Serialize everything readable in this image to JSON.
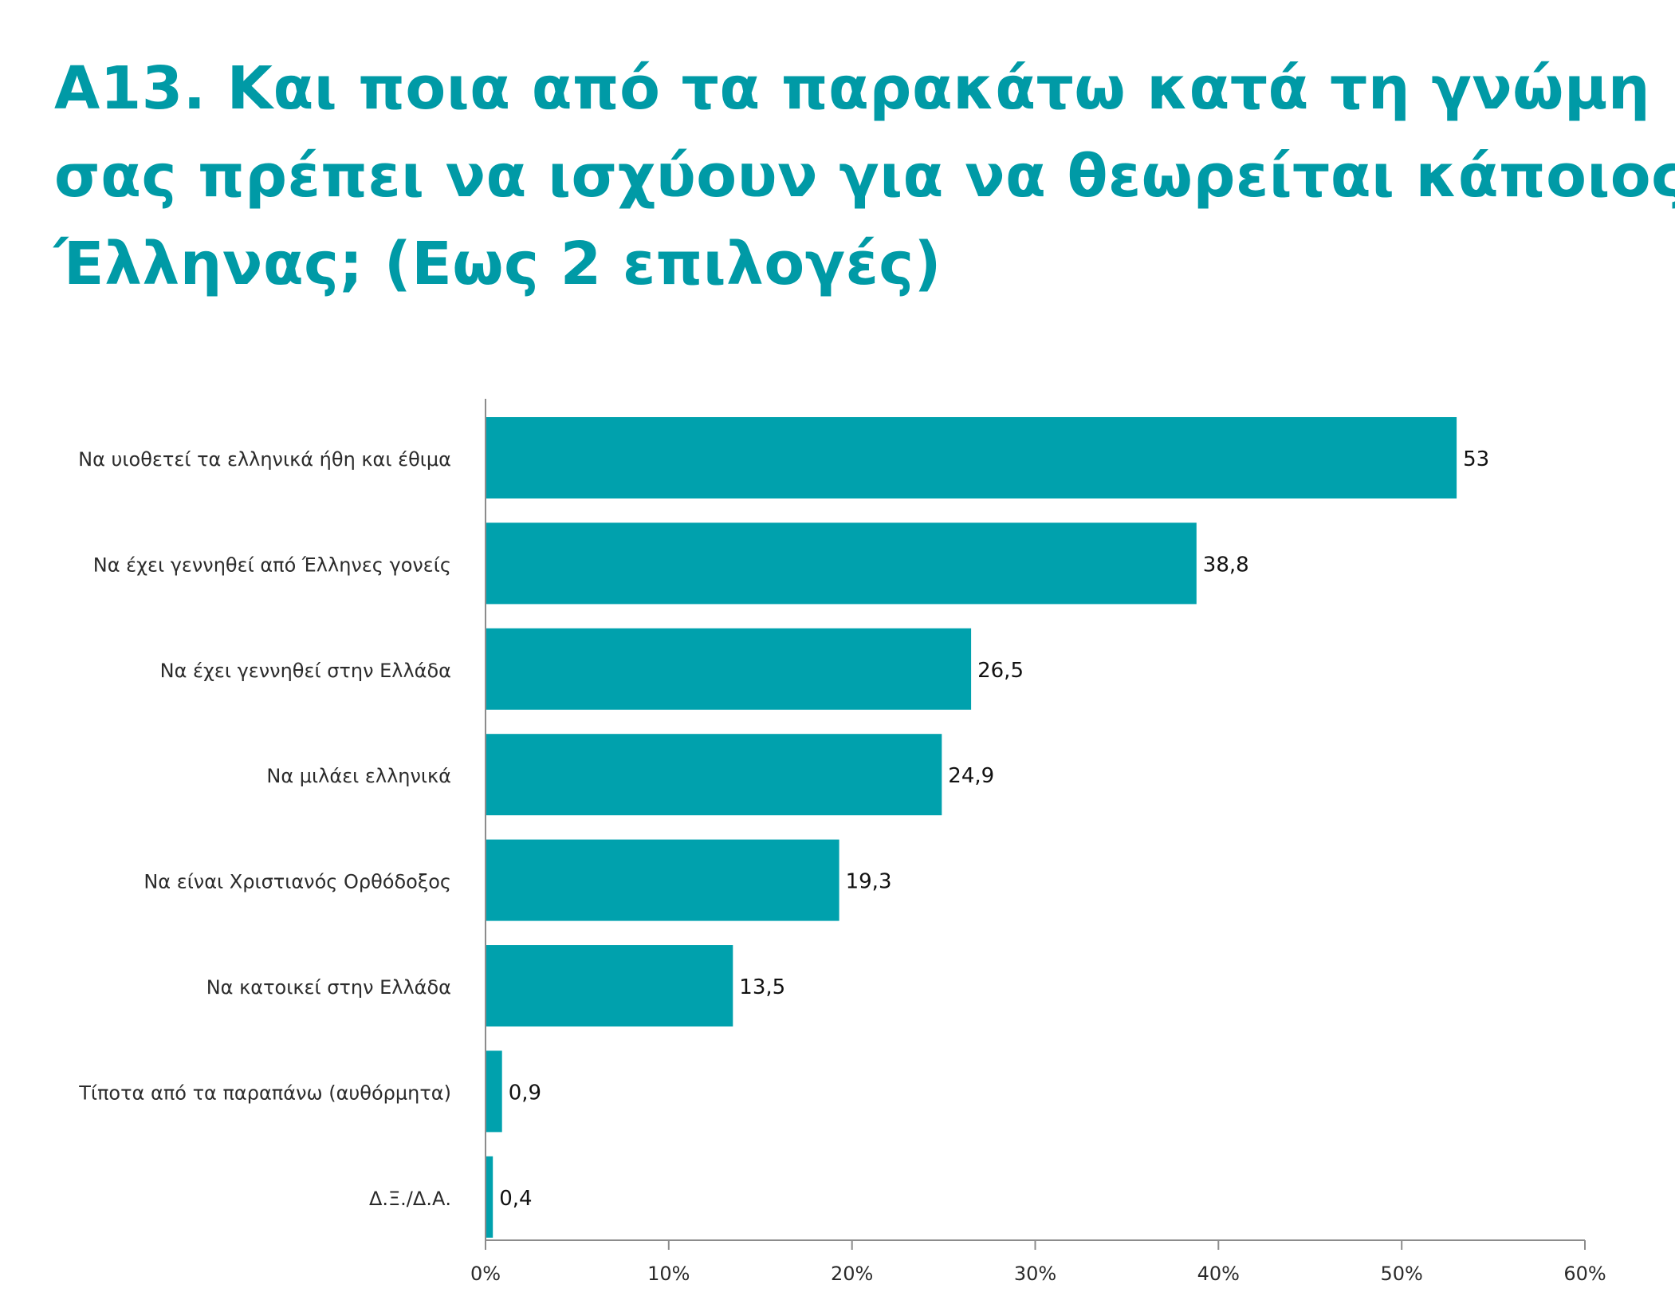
{
  "title": {
    "line1": "Α13. Και ποια από τα παρακάτω κατά τη γνώμη",
    "line2": "σας πρέπει να ισχύουν για να θεωρείται κάποιος",
    "line3": "Έλληνας; (Εως 2 επιλογές)"
  },
  "colors": {
    "accent": "#009aa6",
    "bar": "#00a1ad",
    "axis": "#8c8c8c",
    "text": "#2b2b2b"
  },
  "chart_data": {
    "type": "bar",
    "orientation": "horizontal",
    "categories": [
      "Να υιοθετεί τα ελληνικά ήθη και έθιμα",
      "Να έχει γεννηθεί από Έλληνες γονείς",
      "Να έχει γεννηθεί στην Ελλάδα",
      "Να μιλάει  ελληνικά",
      "Να είναι Χριστιανός Ορθόδοξος",
      "Να κατοικεί στην Ελλάδα",
      "Τίποτα από τα παραπάνω (αυθόρμητα)",
      "Δ.Ξ./Δ.Α."
    ],
    "values": [
      53,
      38.8,
      26.5,
      24.9,
      19.3,
      13.5,
      0.9,
      0.4
    ],
    "value_labels": [
      "53",
      "38,8",
      "26,5",
      "24,9",
      "19,3",
      "13,5",
      "0,9",
      "0,4"
    ],
    "xlim": [
      0,
      60
    ],
    "xticks": [
      0,
      10,
      20,
      30,
      40,
      50,
      60
    ],
    "xtick_labels": [
      "0%",
      "10%",
      "20%",
      "30%",
      "40%",
      "50%",
      "60%"
    ],
    "xlabel": "",
    "ylabel": "",
    "grid": false,
    "legend": "none"
  }
}
